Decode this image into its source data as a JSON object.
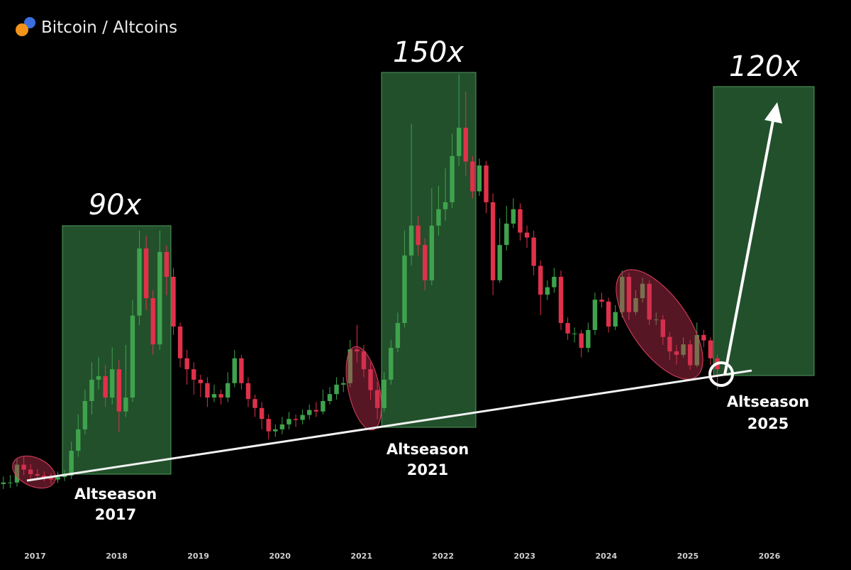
{
  "chart_data": {
    "type": "candlestick",
    "title": "Bitcoin / Altcoins",
    "up_color": "#3fa34d",
    "down_color": "#e0314b",
    "xlim": [
      2016.57,
      2027
    ],
    "xticks": [
      2017,
      2018,
      2019,
      2020,
      2021,
      2022,
      2023,
      2024,
      2025,
      2026
    ],
    "ylim": [
      -3.3,
      111.4
    ],
    "open": [
      14.0,
      14.3,
      14.3,
      17.9,
      16.9,
      16.0,
      15.7,
      15.3,
      14.9,
      15.4,
      15.7,
      20.7,
      25.0,
      30.7,
      35.0,
      35.7,
      31.4,
      37.1,
      28.6,
      31.4,
      47.9,
      61.4,
      51.4,
      42.1,
      60.7,
      55.7,
      45.7,
      39.3,
      37.1,
      35.0,
      34.3,
      31.4,
      32.1,
      31.4,
      34.3,
      39.3,
      34.3,
      31.1,
      29.3,
      27.1,
      24.6,
      25.0,
      26.0,
      27.1,
      26.9,
      27.9,
      28.9,
      28.6,
      30.7,
      32.1,
      34.0,
      34.3,
      41.1,
      40.7,
      37.1,
      32.9,
      29.3,
      35.0,
      41.4,
      46.4,
      60.0,
      66.0,
      62.1,
      55.0,
      66.0,
      69.3,
      70.7,
      80.0,
      85.7,
      78.9,
      72.9,
      78.1,
      70.7,
      55.0,
      62.1,
      66.4,
      69.3,
      64.6,
      63.6,
      57.9,
      52.1,
      53.6,
      55.7,
      46.4,
      44.3,
      44.3,
      41.4,
      45.0,
      51.1,
      50.7,
      45.7,
      48.6,
      55.7,
      48.6,
      51.4,
      54.3,
      47.1,
      47.1,
      43.6,
      40.7,
      40.0,
      42.1,
      37.9,
      44.0,
      42.9,
      39.3
    ],
    "high": [
      15.5,
      15.8,
      19.0,
      19.5,
      18.0,
      17.0,
      16.5,
      16.2,
      16.5,
      16.8,
      22.5,
      28.0,
      33.0,
      38.5,
      39.5,
      38.0,
      41.5,
      39.0,
      42.0,
      51.0,
      65.0,
      64.0,
      53.0,
      65.0,
      62.0,
      57.5,
      46.5,
      41.0,
      38.5,
      36.0,
      35.5,
      34.0,
      33.0,
      36.5,
      41.0,
      40.0,
      35.5,
      32.0,
      30.5,
      28.0,
      26.0,
      27.5,
      28.5,
      28.0,
      29.0,
      30.0,
      30.5,
      33.0,
      33.5,
      35.5,
      35.5,
      43.0,
      46.0,
      42.0,
      38.5,
      34.5,
      36.5,
      43.0,
      48.5,
      65.0,
      86.5,
      68.0,
      63.5,
      73.5,
      74.0,
      77.5,
      84.5,
      96.5,
      93.0,
      80.0,
      79.5,
      79.0,
      72.5,
      67.5,
      70.0,
      71.5,
      70.5,
      66.0,
      65.0,
      59.0,
      55.0,
      57.5,
      57.0,
      47.5,
      45.5,
      45.0,
      46.5,
      52.5,
      52.5,
      51.5,
      50.0,
      57.0,
      56.5,
      53.0,
      55.5,
      55.0,
      48.5,
      48.0,
      44.5,
      42.0,
      43.5,
      43.0,
      46.5,
      45.0,
      43.5,
      40.0
    ],
    "low": [
      13.0,
      13.2,
      13.5,
      15.8,
      15.0,
      14.8,
      14.5,
      14.0,
      14.2,
      14.6,
      15.0,
      19.5,
      24.0,
      28.0,
      33.0,
      29.5,
      30.0,
      24.5,
      27.5,
      30.5,
      46.0,
      49.0,
      40.0,
      41.0,
      52.0,
      44.0,
      37.5,
      34.0,
      32.0,
      31.5,
      29.5,
      30.5,
      30.0,
      30.5,
      33.5,
      33.0,
      29.5,
      27.5,
      25.0,
      23.0,
      23.5,
      24.0,
      25.0,
      25.5,
      26.0,
      27.0,
      27.5,
      28.0,
      30.0,
      31.0,
      32.5,
      33.5,
      38.5,
      35.5,
      31.0,
      27.0,
      28.5,
      34.0,
      40.5,
      45.5,
      58.0,
      60.0,
      53.0,
      54.0,
      64.0,
      67.0,
      69.5,
      78.0,
      76.0,
      71.5,
      72.0,
      68.5,
      52.0,
      54.5,
      61.0,
      65.5,
      63.0,
      61.5,
      56.0,
      48.0,
      51.0,
      52.5,
      45.0,
      43.0,
      42.5,
      39.5,
      40.5,
      44.0,
      49.5,
      44.5,
      45.0,
      47.5,
      47.0,
      48.0,
      50.5,
      46.0,
      46.0,
      42.0,
      39.0,
      38.0,
      39.5,
      37.0,
      37.5,
      41.5,
      38.0,
      33.0
    ],
    "close": [
      14.3,
      14.3,
      17.9,
      16.9,
      16.0,
      15.7,
      15.3,
      14.9,
      15.4,
      15.7,
      20.7,
      25.0,
      30.7,
      35.0,
      35.7,
      31.4,
      37.1,
      28.6,
      31.4,
      47.9,
      61.4,
      51.4,
      42.1,
      60.7,
      55.7,
      45.7,
      39.3,
      37.1,
      35.0,
      34.3,
      31.4,
      32.1,
      31.4,
      34.3,
      39.3,
      34.3,
      31.1,
      29.3,
      27.1,
      24.6,
      25.0,
      26.0,
      27.1,
      26.9,
      27.9,
      28.9,
      28.6,
      30.7,
      32.1,
      34.0,
      34.3,
      41.1,
      40.7,
      37.1,
      32.9,
      29.3,
      35.0,
      41.4,
      46.4,
      60.0,
      66.0,
      62.1,
      55.0,
      66.0,
      69.3,
      70.7,
      80.0,
      85.7,
      78.9,
      72.9,
      78.1,
      70.7,
      55.0,
      62.1,
      66.4,
      69.3,
      64.6,
      63.6,
      57.9,
      52.1,
      53.6,
      55.7,
      46.4,
      44.3,
      44.3,
      41.4,
      45.0,
      51.1,
      50.7,
      45.7,
      48.6,
      55.7,
      48.6,
      51.4,
      54.3,
      47.1,
      47.1,
      43.6,
      40.7,
      40.0,
      42.1,
      37.9,
      44.0,
      42.9,
      39.3,
      37.1
    ],
    "gains": [
      "90x",
      "150x",
      "120x"
    ],
    "seasons": [
      [
        "Altseason",
        "2017"
      ],
      [
        "Altseason",
        "2021"
      ],
      [
        "Altseason",
        "2025"
      ]
    ]
  }
}
